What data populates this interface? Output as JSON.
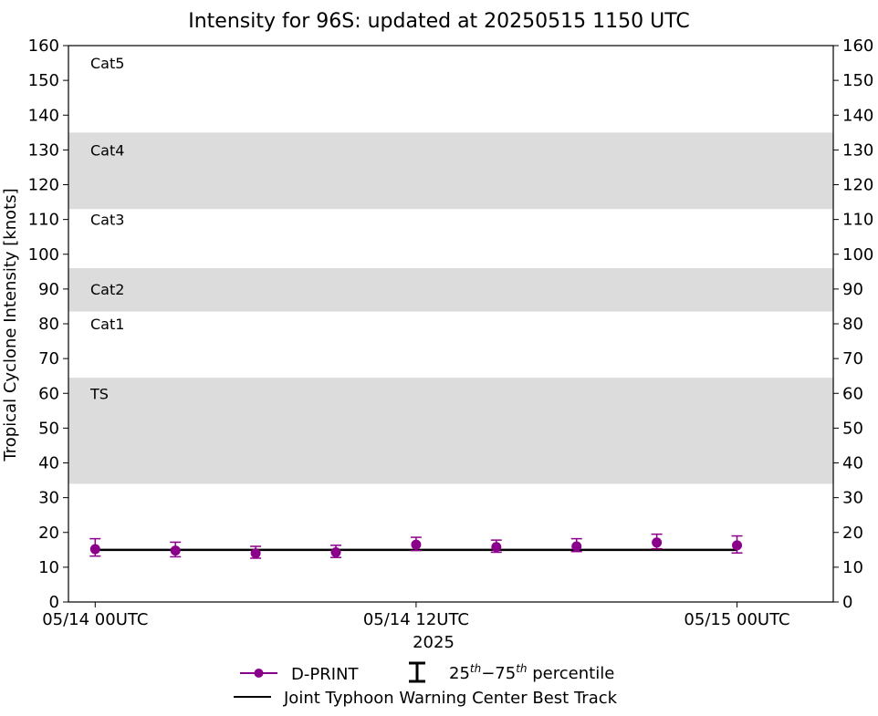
{
  "chart_data": {
    "type": "scatter",
    "title": "Intensity for 96S: updated at 20250515 1150 UTC",
    "xlabel": "2025",
    "ylabel": "Tropical Cyclone Intensity [knots]",
    "ylim": [
      0,
      160
    ],
    "yticks": [
      0,
      10,
      20,
      30,
      40,
      50,
      60,
      70,
      80,
      90,
      100,
      110,
      120,
      130,
      140,
      150,
      160
    ],
    "xlim": [
      -1.0,
      27.6
    ],
    "xticks": [
      {
        "x": 0,
        "label": "05/14 00UTC"
      },
      {
        "x": 12,
        "label": "05/14 12UTC"
      },
      {
        "x": 24,
        "label": "05/15 00UTC"
      }
    ],
    "x_unit_note": "hours",
    "bands": [
      {
        "y0": 34,
        "y1": 64.5,
        "shaded": true
      },
      {
        "y0": 83.5,
        "y1": 96,
        "shaded": true
      },
      {
        "y0": 113,
        "y1": 135,
        "shaded": true
      }
    ],
    "category_labels": [
      {
        "label": "Cat5",
        "y": 155
      },
      {
        "label": "Cat4",
        "y": 130
      },
      {
        "label": "Cat3",
        "y": 110
      },
      {
        "label": "Cat2",
        "y": 90
      },
      {
        "label": "Cat1",
        "y": 80
      },
      {
        "label": "TS",
        "y": 60
      }
    ],
    "series": [
      {
        "name": "D-PRINT",
        "color": "#8B008B",
        "x": [
          0,
          3,
          6,
          9,
          12,
          15,
          18,
          21,
          24
        ],
        "y": [
          15.2,
          14.8,
          14.0,
          14.3,
          16.5,
          15.8,
          16.0,
          17.1,
          16.3
        ],
        "p25": [
          13.2,
          13.0,
          12.6,
          12.8,
          14.8,
          14.3,
          14.5,
          15.3,
          14.1
        ],
        "p75": [
          18.2,
          17.2,
          16.0,
          16.3,
          18.6,
          17.8,
          18.2,
          19.5,
          19.0
        ]
      },
      {
        "name": "Joint Typhoon Warning Center Best Track",
        "color": "#000000",
        "x": [
          0,
          24
        ],
        "y": [
          15,
          15
        ]
      }
    ],
    "legend": {
      "placement": "bottom",
      "dprint_label": "D-PRINT",
      "percentile_label": "25th-75th percentile",
      "percentile_base1": "25",
      "percentile_sup1": "th",
      "percentile_mid": "−75",
      "percentile_sup2": "th",
      "percentile_tail": " percentile",
      "best_track_label": "Joint Typhoon Warning Center Best Track"
    },
    "colors": {
      "band": "#dcdcdc",
      "dprint": "#8B008B",
      "best_track": "#000000"
    }
  }
}
